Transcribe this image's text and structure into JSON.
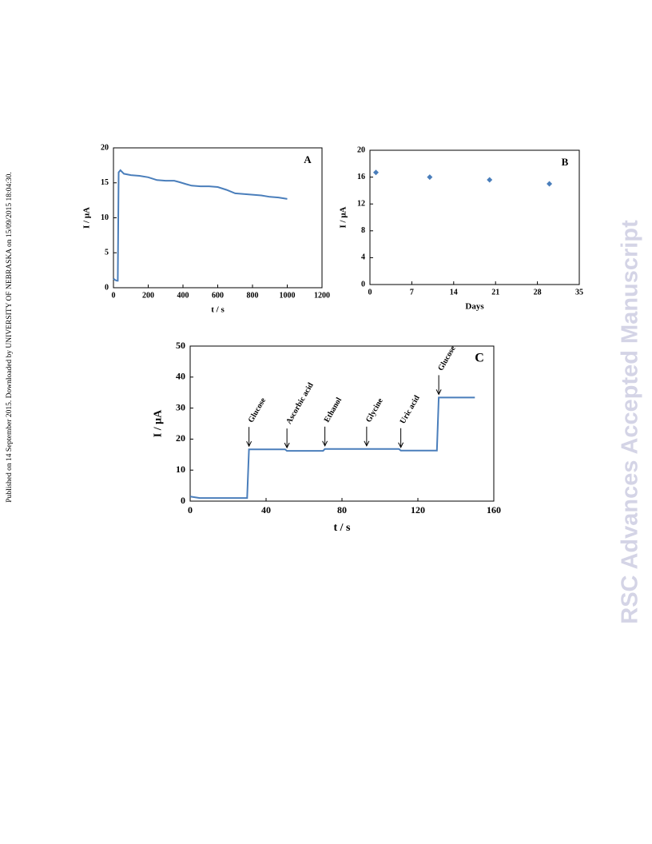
{
  "side_note": "Published on 14 September 2015. Downloaded by UNIVERSITY OF NEBRASKA on 15/09/2015 18:04:30.",
  "watermark": "RSC Advances Accepted Manuscript",
  "chart_data": [
    {
      "type": "line",
      "panel_label": "A",
      "x_label": "t / s",
      "y_label": "I / μA",
      "color": "#4a7ebb",
      "x": [
        0,
        10,
        20,
        25,
        30,
        40,
        60,
        100,
        150,
        200,
        250,
        300,
        350,
        380,
        420,
        450,
        500,
        550,
        600,
        650,
        700,
        750,
        800,
        850,
        900,
        950,
        1000
      ],
      "values": [
        1.3,
        1.1,
        1.0,
        1.0,
        16.5,
        16.8,
        16.3,
        16.1,
        16.0,
        15.8,
        15.4,
        15.3,
        15.3,
        15.1,
        14.8,
        14.6,
        14.5,
        14.5,
        14.4,
        14.0,
        13.5,
        13.4,
        13.3,
        13.2,
        13.0,
        12.9,
        12.7
      ],
      "xlim": [
        0,
        1200
      ],
      "xticks": [
        0,
        200,
        400,
        600,
        800,
        1000,
        1200
      ],
      "ylim": [
        0,
        20
      ],
      "yticks": [
        0,
        5,
        10,
        15,
        20
      ]
    },
    {
      "type": "scatter",
      "panel_label": "B",
      "x_label": "Days",
      "y_label": "I / μA",
      "color": "#4a7ebb",
      "x": [
        1,
        10,
        20,
        30
      ],
      "values": [
        16.7,
        16.0,
        15.6,
        15.0
      ],
      "xlim": [
        0,
        35
      ],
      "xticks": [
        0,
        7,
        14,
        21,
        28,
        35
      ],
      "ylim": [
        0,
        20
      ],
      "yticks": [
        0,
        4,
        8,
        12,
        16,
        20
      ]
    },
    {
      "type": "line",
      "panel_label": "C",
      "x_label": "t / s",
      "y_label": "I / μA",
      "color": "#4a7ebb",
      "x": [
        0,
        5,
        30,
        31,
        50,
        51,
        70,
        71,
        110,
        111,
        130,
        131,
        150
      ],
      "values": [
        1.5,
        1.0,
        1.0,
        16.7,
        16.7,
        16.2,
        16.2,
        16.8,
        16.8,
        16.3,
        16.3,
        33.4,
        33.4
      ],
      "xlim": [
        0,
        160
      ],
      "xticks": [
        0,
        40,
        80,
        120,
        160
      ],
      "ylim": [
        0,
        50
      ],
      "yticks": [
        0,
        10,
        20,
        30,
        40,
        50
      ],
      "annotations": [
        {
          "label": "Glucose",
          "x": 31
        },
        {
          "label": "Ascorbic acid",
          "x": 51
        },
        {
          "label": "Ethanol",
          "x": 71
        },
        {
          "label": "Glycine",
          "x": 93
        },
        {
          "label": "Uric acid",
          "x": 111
        },
        {
          "label": "Glucose",
          "x": 131
        }
      ]
    }
  ]
}
